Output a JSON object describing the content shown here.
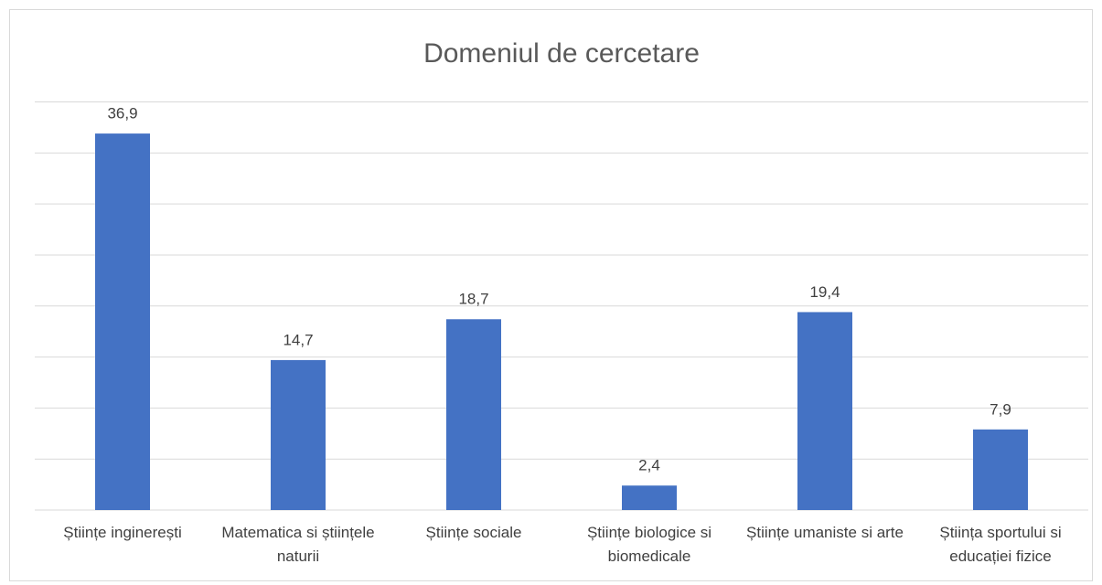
{
  "chart_data": {
    "type": "bar",
    "title": "Domeniul de cercetare",
    "categories": [
      "Științe inginerești",
      "Matematica si științele naturii",
      "Științe sociale",
      "Științe biologice si biomedicale",
      "Științe umaniste si arte",
      "Știința sportului si educației fizice"
    ],
    "values": [
      36.9,
      14.7,
      18.7,
      2.4,
      19.4,
      7.9
    ],
    "value_labels": [
      "36,9",
      "14,7",
      "18,7",
      "2,4",
      "19,4",
      "7,9"
    ],
    "color": "#4472c4",
    "ylim": [
      0,
      40
    ],
    "yticks": [
      0,
      5,
      10,
      15,
      20,
      25,
      30,
      35,
      40
    ],
    "grid": true
  }
}
